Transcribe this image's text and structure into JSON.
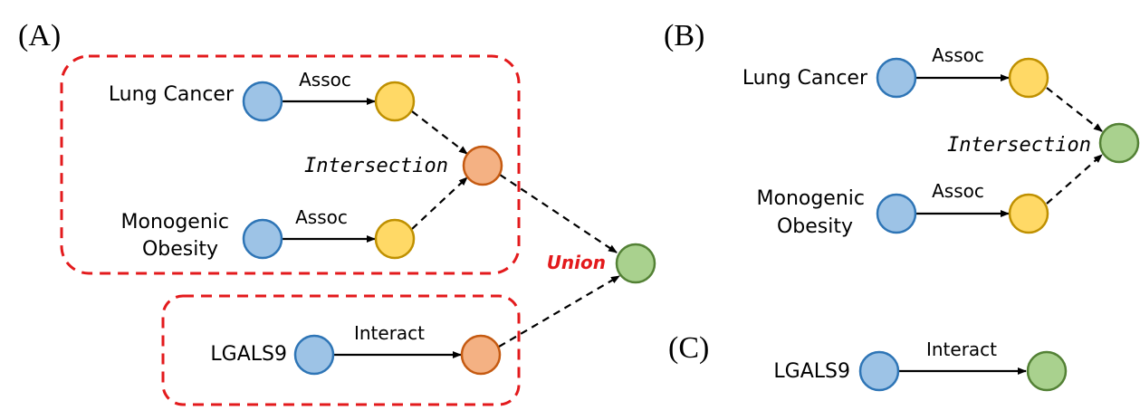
{
  "panels": {
    "a": "(A)",
    "b": "(B)",
    "c": "(C)"
  },
  "colors": {
    "anchor": "#9dc3e6",
    "anchor_stroke": "#2e75b6",
    "intermediate": "#ffd966",
    "intermediate_stroke": "#bf9000",
    "operator": "#f4b183",
    "operator_stroke": "#c55a11",
    "target": "#a9d18e",
    "target_stroke": "#538135",
    "box": "#e31a1c",
    "union_text": "#e31a1c"
  },
  "panel_a": {
    "node_lung": "Lung Cancer",
    "node_obesity_1": "Monogenic",
    "node_obesity_2": "Obesity",
    "node_lgals9": "LGALS9",
    "edge_assoc_1": "Assoc",
    "edge_assoc_2": "Assoc",
    "edge_interact": "Interact",
    "op_intersection": "Intersection",
    "op_union": "Union"
  },
  "panel_b": {
    "node_lung": "Lung Cancer",
    "node_obesity_1": "Monogenic",
    "node_obesity_2": "Obesity",
    "edge_assoc_1": "Assoc",
    "edge_assoc_2": "Assoc",
    "op_intersection": "Intersection"
  },
  "panel_c": {
    "node_lgals9": "LGALS9",
    "edge_interact": "Interact"
  }
}
